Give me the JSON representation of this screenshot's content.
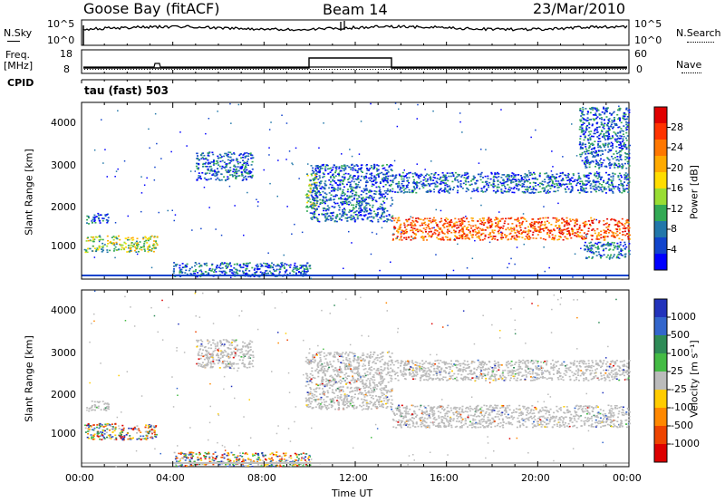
{
  "header": {
    "station": "Goose Bay (fitACF)",
    "beam": "Beam 14",
    "date": "23/Mar/2010"
  },
  "strips": {
    "nsky_label": "N.Sky",
    "nsky_ticks": [
      "10^5",
      "10^0"
    ],
    "nsearch_label": "N.Search",
    "nsearch_ticks": [
      "10^5",
      "10^0"
    ],
    "freq_label": "Freq.",
    "freq_unit": "[MHz]",
    "freq_ticks": [
      "18",
      "8"
    ],
    "nave_label": "Nave",
    "nave_ticks": [
      "60",
      "0"
    ],
    "cpid_label": "CPID",
    "cpid_text": "tau (fast) 503"
  },
  "chart_data": [
    {
      "type": "heatmap",
      "panel": "power",
      "xlabel": "Time UT",
      "ylabel": "Slant Range [km]",
      "yticks": [
        "4000",
        "3000",
        "2000",
        "1000"
      ],
      "xticks": [
        "00:00",
        "04:00",
        "08:00",
        "12:00",
        "16:00",
        "20:00",
        "00:00"
      ],
      "ylim": [
        180,
        4500
      ],
      "xlim_hours": [
        0,
        24
      ],
      "colorbar": {
        "label": "Power [dB]",
        "ticks": [
          "28",
          "24",
          "20",
          "16",
          "12",
          "8",
          "4"
        ],
        "colors": [
          "#e00000",
          "#ff3300",
          "#ff7700",
          "#ffaa00",
          "#ffdd00",
          "#99dd33",
          "#33aa55",
          "#2277aa",
          "#1144cc",
          "#0000ff"
        ]
      },
      "regions": [
        {
          "t": [
            0.2,
            1.2
          ],
          "r": [
            1550,
            1800
          ],
          "level": "weak"
        },
        {
          "t": [
            0.1,
            3.3
          ],
          "r": [
            850,
            1250
          ],
          "level": "medium"
        },
        {
          "t": [
            5.0,
            7.5
          ],
          "r": [
            2600,
            3300
          ],
          "level": "weak"
        },
        {
          "t": [
            9.8,
            10.3
          ],
          "r": [
            1800,
            2800
          ],
          "level": "medium"
        },
        {
          "t": [
            10.0,
            13.6
          ],
          "r": [
            1600,
            3000
          ],
          "level": "weak"
        },
        {
          "t": [
            13.6,
            24.0
          ],
          "r": [
            1150,
            1700
          ],
          "level": "strong"
        },
        {
          "t": [
            13.6,
            24.0
          ],
          "r": [
            2300,
            2800
          ],
          "level": "weak"
        },
        {
          "t": [
            21.8,
            24.0
          ],
          "r": [
            2900,
            4400
          ],
          "level": "weak"
        },
        {
          "t": [
            22.0,
            24.0
          ],
          "r": [
            700,
            1100
          ],
          "level": "weak"
        },
        {
          "t": [
            4.0,
            10.0
          ],
          "r": [
            250,
            600
          ],
          "level": "weak"
        }
      ]
    },
    {
      "type": "heatmap",
      "panel": "velocity",
      "xlabel": "Time UT",
      "ylabel": "Slant Range [km]",
      "yticks": [
        "4000",
        "3000",
        "2000",
        "1000"
      ],
      "xticks": [
        "00:00",
        "04:00",
        "08:00",
        "12:00",
        "16:00",
        "20:00",
        "00:00"
      ],
      "ylim": [
        180,
        4500
      ],
      "xlim_hours": [
        0,
        24
      ],
      "colorbar": {
        "label": "Velocity [m s⁻¹]",
        "ticks": [
          "1000",
          "500",
          "100",
          "25",
          "-25",
          "-100",
          "-500",
          "-1000"
        ],
        "colors": [
          "#2233bb",
          "#3366cc",
          "#2e8b57",
          "#44bb44",
          "#bbbbbb",
          "#ffcc00",
          "#ff8800",
          "#ee4400",
          "#dd0000"
        ]
      },
      "regions": [
        {
          "t": [
            0.1,
            3.3
          ],
          "r": [
            850,
            1250
          ],
          "level": "mixed"
        },
        {
          "t": [
            0.2,
            1.2
          ],
          "r": [
            1550,
            1800
          ],
          "level": "grey"
        },
        {
          "t": [
            5.0,
            7.5
          ],
          "r": [
            2600,
            3300
          ],
          "level": "grey"
        },
        {
          "t": [
            9.8,
            13.6
          ],
          "r": [
            1600,
            3000
          ],
          "level": "grey"
        },
        {
          "t": [
            13.6,
            24.0
          ],
          "r": [
            1150,
            1700
          ],
          "level": "grey"
        },
        {
          "t": [
            13.6,
            24.0
          ],
          "r": [
            2300,
            2800
          ],
          "level": "grey"
        },
        {
          "t": [
            4.0,
            10.0
          ],
          "r": [
            200,
            550
          ],
          "level": "mixed"
        }
      ]
    }
  ]
}
